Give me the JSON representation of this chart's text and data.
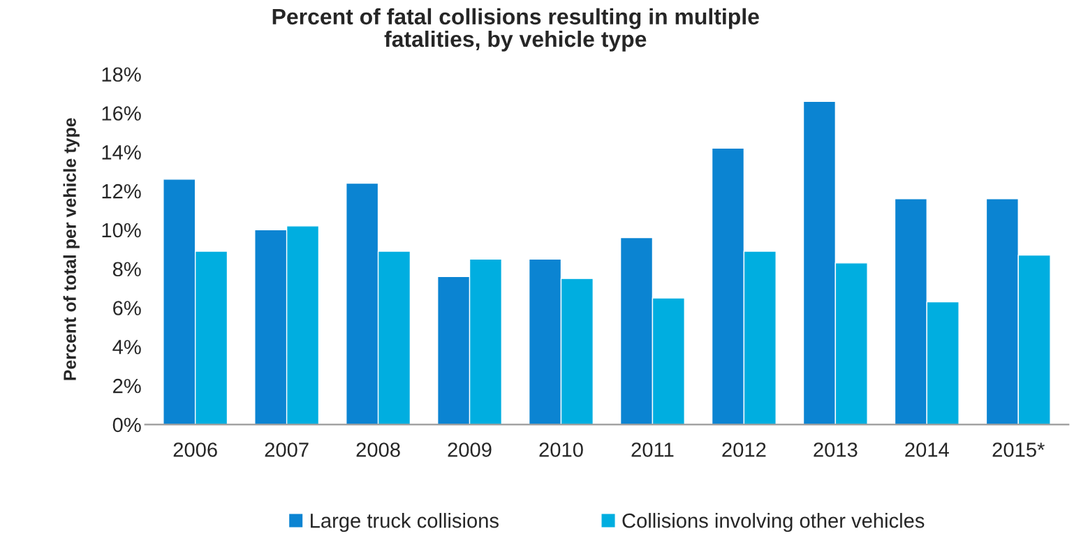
{
  "chart_data": {
    "type": "bar",
    "title": "Percent of fatal collisions resulting in multiple\nfatalities, by vehicle type",
    "ylabel": "Percent of total per vehicle type",
    "categories": [
      "2006",
      "2007",
      "2008",
      "2009",
      "2010",
      "2011",
      "2012",
      "2013",
      "2014",
      "2015*"
    ],
    "series": [
      {
        "name": "Large truck collisions",
        "color": "#0b84d2",
        "values": [
          12.6,
          10.0,
          12.4,
          7.6,
          8.5,
          9.6,
          14.2,
          16.6,
          11.6,
          11.6
        ]
      },
      {
        "name": "Collisions involving other vehicles",
        "color": "#00aee0",
        "values": [
          8.9,
          10.2,
          8.9,
          8.5,
          7.5,
          6.5,
          8.9,
          8.3,
          6.3,
          8.7
        ]
      }
    ],
    "ylim": [
      0,
      18
    ],
    "yticks": [
      {
        "value": 0,
        "label": "0%"
      },
      {
        "value": 2,
        "label": "2%"
      },
      {
        "value": 4,
        "label": "4%"
      },
      {
        "value": 6,
        "label": "6%"
      },
      {
        "value": 8,
        "label": "8%"
      },
      {
        "value": 10,
        "label": "10%"
      },
      {
        "value": 12,
        "label": "12%"
      },
      {
        "value": 14,
        "label": "14%"
      },
      {
        "value": 16,
        "label": "16%"
      },
      {
        "value": 18,
        "label": "18%"
      }
    ],
    "grid": false,
    "legend": "bottom"
  }
}
